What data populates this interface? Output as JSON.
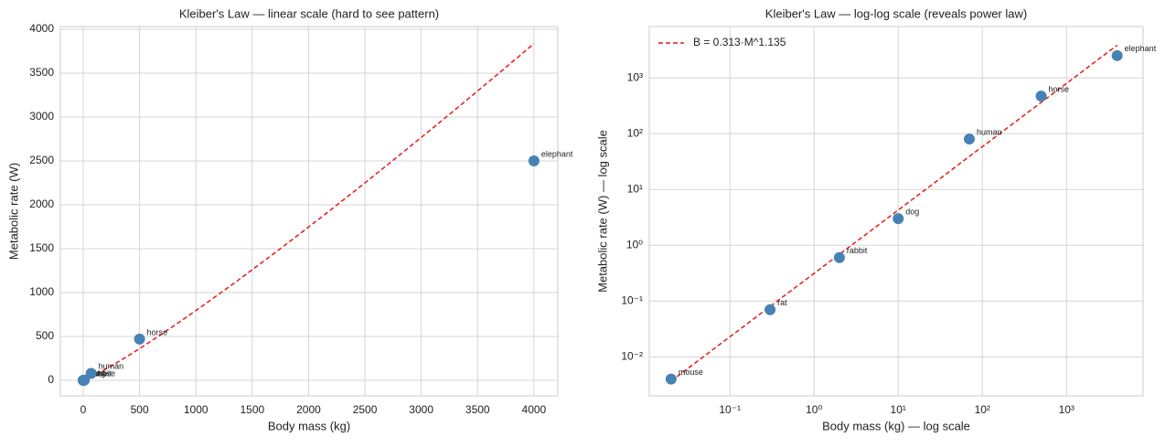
{
  "chart_data": [
    {
      "type": "scatter",
      "title": "Kleiber's Law — linear scale (hard to see pattern)",
      "x_label": "Body mass (kg)",
      "y_label": "Metabolic rate (W)",
      "log": false,
      "grid": true,
      "labels": [
        "mouse",
        "rat",
        "rabbit",
        "dog",
        "human",
        "horse",
        "elephant"
      ],
      "x": [
        0.02,
        0.3,
        2,
        10,
        70,
        500,
        4000
      ],
      "values": [
        0.004,
        0.07,
        0.6,
        3,
        80,
        470,
        2500
      ],
      "color": "#4682b4",
      "fit": {
        "coef": 0.313,
        "exponent": 1.135,
        "xrange": [
          0.02,
          4000
        ],
        "color": "#e41a1c"
      },
      "xlim": [
        -203,
        4212
      ],
      "ylim": [
        -177,
        4031
      ],
      "xticks": [
        0,
        500,
        1000,
        1500,
        2000,
        2500,
        3000,
        3500,
        4000
      ],
      "yticks": [
        0,
        500,
        1000,
        1500,
        2000,
        2500,
        3000,
        3500,
        4000
      ]
    },
    {
      "type": "scatter",
      "title": "Kleiber's Law — log-log scale (reveals power law)",
      "x_label": "Body mass (kg) — log scale",
      "y_label": "Metabolic rate (W) — log scale",
      "log": true,
      "grid": true,
      "labels": [
        "mouse",
        "rat",
        "rabbit",
        "dog",
        "human",
        "horse",
        "elephant"
      ],
      "x": [
        0.02,
        0.3,
        2,
        10,
        70,
        500,
        4000
      ],
      "values": [
        0.004,
        0.07,
        0.6,
        3,
        80,
        470,
        2500
      ],
      "color": "#4682b4",
      "fit": {
        "name": "B = 0.313·M^1.135",
        "coef": 0.313,
        "exponent": 1.135,
        "xrange": [
          0.02,
          4000
        ],
        "color": "#e41a1c"
      },
      "legend": "upper left",
      "xlim": [
        0.011,
        8130
      ],
      "ylim": [
        0.002,
        8300
      ],
      "xticks": [
        {
          "value": 0.1,
          "label": "10⁻¹"
        },
        {
          "value": 1,
          "label": "10⁰"
        },
        {
          "value": 10,
          "label": "10¹"
        },
        {
          "value": 100,
          "label": "10²"
        },
        {
          "value": 1000,
          "label": "10³"
        }
      ],
      "yticks": [
        {
          "value": 0.01,
          "label": "10⁻²"
        },
        {
          "value": 0.1,
          "label": "10⁻¹"
        },
        {
          "value": 1,
          "label": "10⁰"
        },
        {
          "value": 10,
          "label": "10¹"
        },
        {
          "value": 100,
          "label": "10²"
        },
        {
          "value": 1000,
          "label": "10³"
        }
      ]
    }
  ]
}
